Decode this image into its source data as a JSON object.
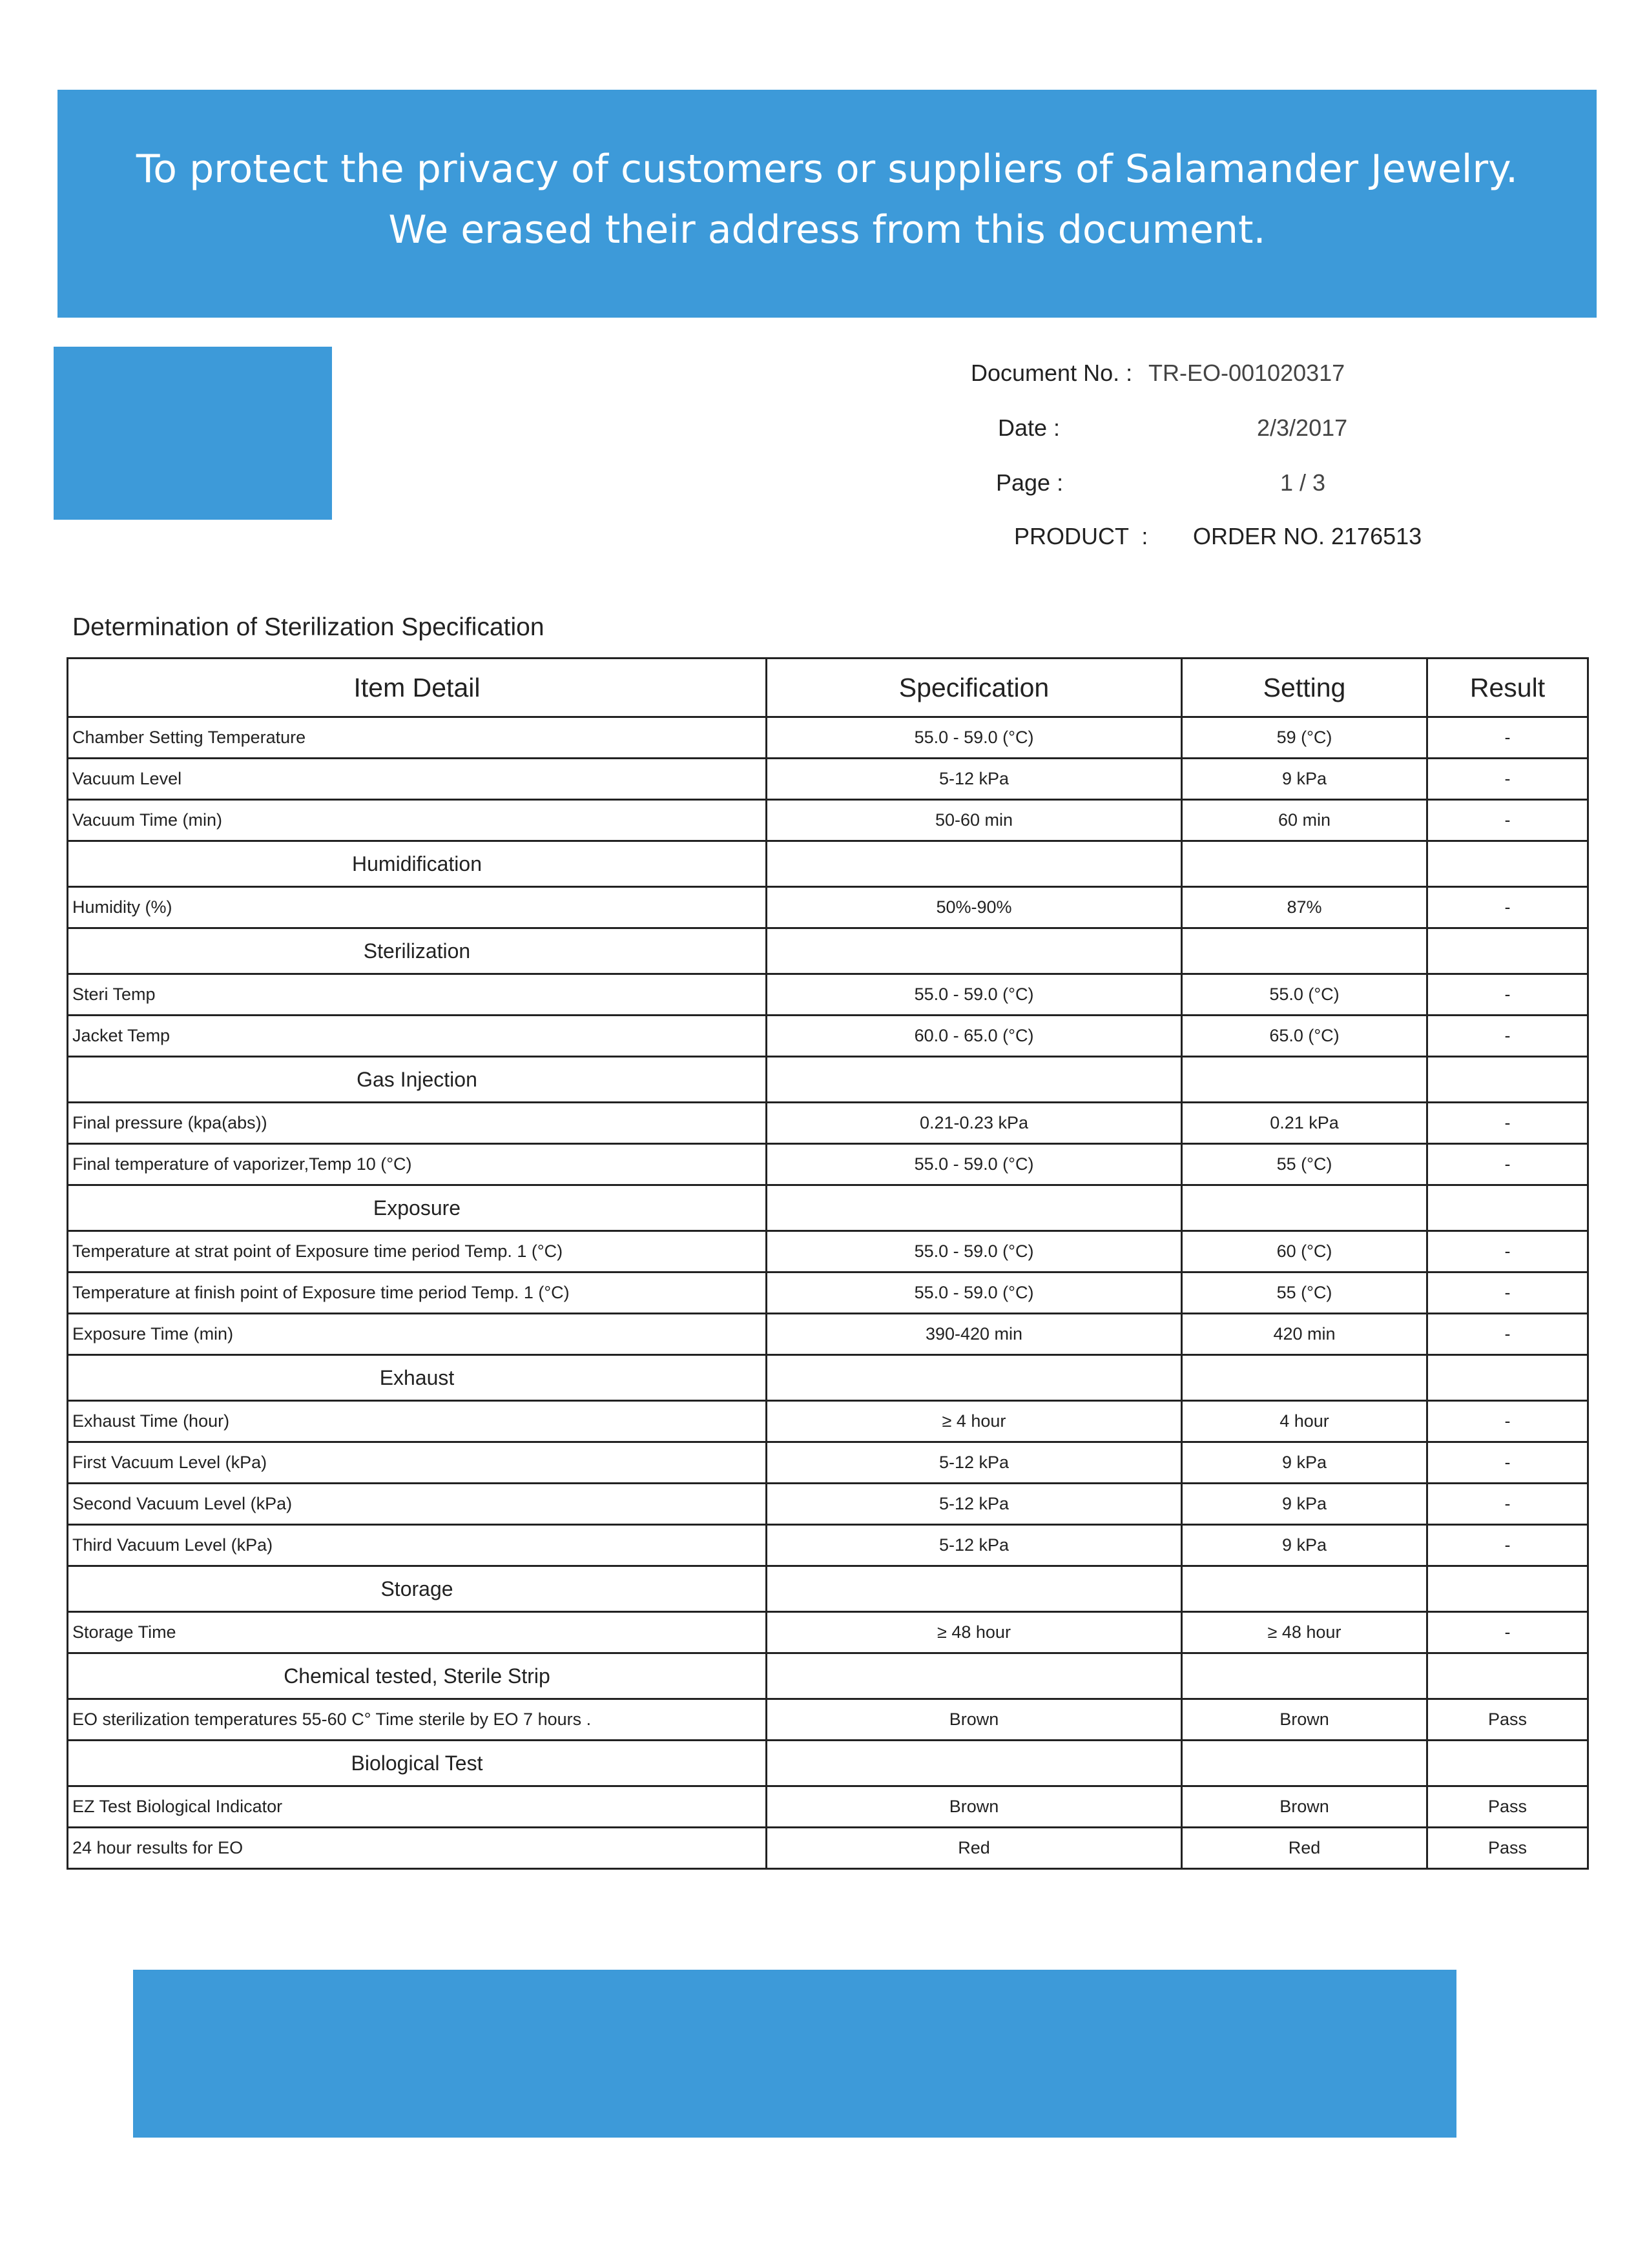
{
  "banner": {
    "lines": [
      "To protect the privacy of customers or suppliers of Salamander Jewelry.",
      "We erased their address from this document."
    ]
  },
  "header": {
    "document_no_label": "Document No. :",
    "document_no": "TR-EO-001020317",
    "date_label": "Date :",
    "date": "2/3/2017",
    "page_label": "Page :",
    "page": "1 / 3",
    "product_label": "PRODUCT  :",
    "product": "ORDER NO. 2176513"
  },
  "table": {
    "title": "Determination of Sterilization Specification",
    "columns": [
      "Item Detail",
      "Specification",
      "Setting",
      "Result"
    ],
    "rows": [
      {
        "cells": [
          "Chamber Setting Temperature",
          "55.0 - 59.0 (°C)",
          "59 (°C)",
          "-"
        ]
      },
      {
        "cells": [
          "Vacuum Level",
          "5-12 kPa",
          "9 kPa",
          "-"
        ]
      },
      {
        "cells": [
          "Vacuum Time (min)",
          "50-60 min",
          "60 min",
          "-"
        ]
      },
      {
        "section": "Humidification"
      },
      {
        "cells": [
          "Humidity (%)",
          "50%-90%",
          "87%",
          "-"
        ]
      },
      {
        "section": "Sterilization"
      },
      {
        "cells": [
          "Steri Temp",
          "55.0 - 59.0 (°C)",
          "55.0 (°C)",
          "-"
        ]
      },
      {
        "cells": [
          "Jacket Temp",
          "60.0 - 65.0 (°C)",
          "65.0 (°C)",
          "-"
        ]
      },
      {
        "section": "Gas Injection"
      },
      {
        "cells": [
          "Final pressure (kpa(abs))",
          "0.21-0.23 kPa",
          "0.21 kPa",
          "-"
        ]
      },
      {
        "cells": [
          "Final temperature of vaporizer,Temp 10 (°C)",
          "55.0 - 59.0 (°C)",
          "55 (°C)",
          "-"
        ]
      },
      {
        "section": "Exposure"
      },
      {
        "cells": [
          "Temperature at strat point of Exposure time period Temp. 1 (°C)",
          "55.0 - 59.0 (°C)",
          "60 (°C)",
          "-"
        ]
      },
      {
        "cells": [
          "Temperature at finish point of Exposure time period Temp. 1 (°C)",
          "55.0 - 59.0 (°C)",
          "55 (°C)",
          "-"
        ]
      },
      {
        "cells": [
          "Exposure Time (min)",
          "390-420 min",
          "420 min",
          "-"
        ]
      },
      {
        "section": "Exhaust"
      },
      {
        "cells": [
          "Exhaust Time (hour)",
          "≥ 4 hour",
          "4 hour",
          "-"
        ]
      },
      {
        "cells": [
          "First Vacuum Level (kPa)",
          "5-12 kPa",
          "9 kPa",
          "-"
        ]
      },
      {
        "cells": [
          "Second  Vacuum Level (kPa)",
          "5-12 kPa",
          "9 kPa",
          "-"
        ]
      },
      {
        "cells": [
          "Third  Vacuum Level (kPa)",
          "5-12 kPa",
          "9 kPa",
          "-"
        ]
      },
      {
        "section": "Storage"
      },
      {
        "cells": [
          "Storage Time",
          "≥ 48 hour",
          "≥ 48 hour",
          "-"
        ]
      },
      {
        "section": "Chemical tested, Sterile Strip"
      },
      {
        "cells": [
          "EO sterilization temperatures 55-60 C° Time sterile by EO 7 hours .",
          "Brown",
          "Brown",
          "Pass"
        ]
      },
      {
        "section": "Biological Test"
      },
      {
        "cells": [
          "EZ Test Biological Indicator",
          "Brown",
          "Brown",
          "Pass"
        ]
      },
      {
        "cells": [
          "24 hour results for EO",
          "Red",
          "Red",
          "Pass"
        ]
      }
    ]
  }
}
